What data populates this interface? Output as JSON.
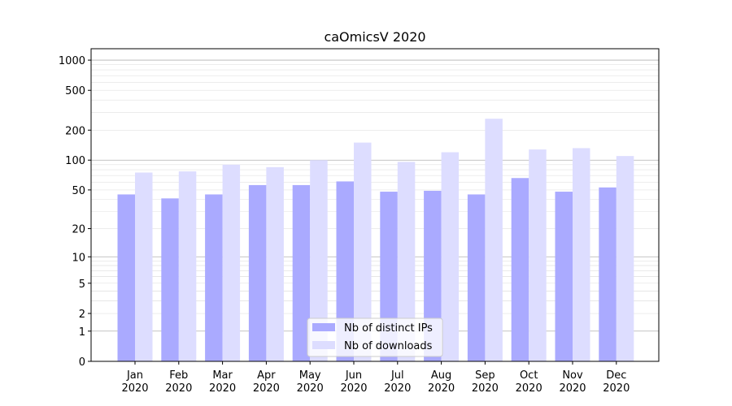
{
  "chart_data": {
    "type": "bar",
    "title": "caOmicsV 2020",
    "xlabel": "",
    "ylabel": "",
    "yscale": "symlog",
    "ylim": [
      0,
      1300
    ],
    "grid": "y",
    "legend_position": "bottom-center",
    "yticks": [
      {
        "value": 0,
        "label": "0"
      },
      {
        "value": 1,
        "label": "1"
      },
      {
        "value": 2,
        "label": "2"
      },
      {
        "value": 5,
        "label": "5"
      },
      {
        "value": 10,
        "label": "10"
      },
      {
        "value": 20,
        "label": "20"
      },
      {
        "value": 50,
        "label": "50"
      },
      {
        "value": 100,
        "label": "100"
      },
      {
        "value": 200,
        "label": "200"
      },
      {
        "value": 500,
        "label": "500"
      },
      {
        "value": 1000,
        "label": "1000"
      }
    ],
    "categories": [
      {
        "month": "Jan",
        "year": "2020"
      },
      {
        "month": "Feb",
        "year": "2020"
      },
      {
        "month": "Mar",
        "year": "2020"
      },
      {
        "month": "Apr",
        "year": "2020"
      },
      {
        "month": "May",
        "year": "2020"
      },
      {
        "month": "Jun",
        "year": "2020"
      },
      {
        "month": "Jul",
        "year": "2020"
      },
      {
        "month": "Aug",
        "year": "2020"
      },
      {
        "month": "Sep",
        "year": "2020"
      },
      {
        "month": "Oct",
        "year": "2020"
      },
      {
        "month": "Nov",
        "year": "2020"
      },
      {
        "month": "Dec",
        "year": "2020"
      }
    ],
    "series": [
      {
        "name": "Nb of distinct IPs",
        "color": "#aaaaff",
        "values": [
          45,
          41,
          45,
          56,
          56,
          61,
          48,
          49,
          45,
          66,
          48,
          53
        ]
      },
      {
        "name": "Nb of downloads",
        "color": "#ddddff",
        "values": [
          75,
          77,
          90,
          85,
          100,
          150,
          96,
          120,
          260,
          128,
          132,
          110
        ]
      }
    ]
  }
}
